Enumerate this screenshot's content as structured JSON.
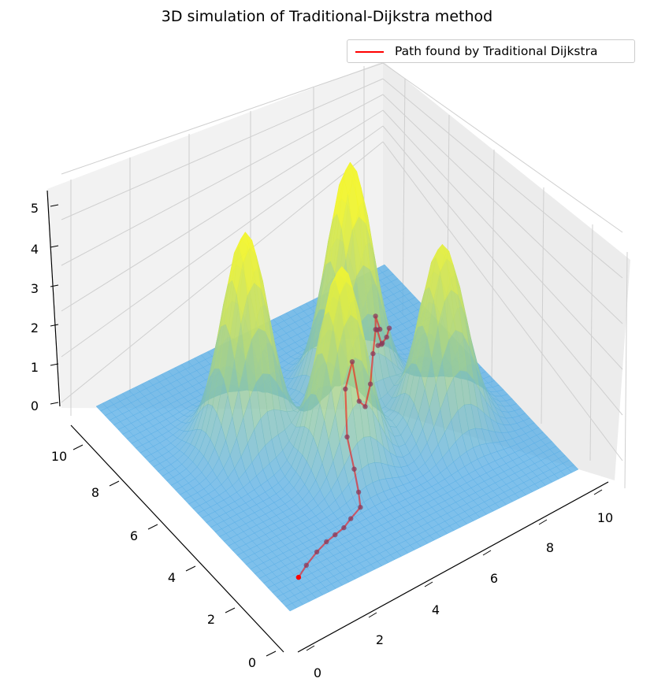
{
  "chart_data": {
    "type": "surface3d",
    "title": "3D simulation of Traditional-Dijkstra method",
    "legend": {
      "placement": "top-right",
      "entries": [
        {
          "label": "Path found by Traditional Dijkstra",
          "color": "#ff0000"
        }
      ]
    },
    "xlim": [
      0,
      11
    ],
    "ylim": [
      0,
      11
    ],
    "zlim": [
      0,
      5
    ],
    "x_ticks": [
      0,
      2,
      4,
      6,
      8,
      10
    ],
    "y_ticks": [
      0,
      2,
      4,
      6,
      8,
      10
    ],
    "z_ticks": [
      0,
      1,
      2,
      3,
      4,
      5
    ],
    "grid": true,
    "colors": {
      "low": "#5aaee6",
      "high": "#f2f530",
      "path": "#ff0000",
      "pane": "#f2f2f2",
      "grid": "#cfcfcf"
    },
    "peaks": [
      {
        "x": 3.0,
        "y": 7.0,
        "height": 4.6,
        "spread": 0.75
      },
      {
        "x": 7.0,
        "y": 7.0,
        "height": 5.0,
        "spread": 0.75
      },
      {
        "x": 5.0,
        "y": 4.5,
        "height": 4.3,
        "spread": 0.75
      },
      {
        "x": 8.5,
        "y": 4.0,
        "height": 4.0,
        "spread": 0.75
      }
    ],
    "path": {
      "name": "Path found by Traditional Dijkstra",
      "points": [
        [
          1.0,
          1.0
        ],
        [
          1.5,
          1.3
        ],
        [
          2.1,
          1.6
        ],
        [
          2.6,
          1.8
        ],
        [
          3.0,
          1.9
        ],
        [
          3.4,
          2.0
        ],
        [
          3.8,
          2.2
        ],
        [
          4.3,
          2.4
        ],
        [
          4.5,
          2.8
        ],
        [
          4.6,
          3.2
        ],
        [
          4.6,
          3.6
        ],
        [
          4.8,
          4.0
        ],
        [
          5.4,
          4.5
        ],
        [
          6.0,
          5.0
        ],
        [
          6.5,
          5.4
        ],
        [
          6.9,
          5.7
        ],
        [
          7.2,
          6.0
        ],
        [
          7.5,
          6.3
        ],
        [
          7.7,
          6.6
        ],
        [
          8.0,
          6.8
        ],
        [
          8.1,
          7.1
        ],
        [
          8.4,
          7.3
        ],
        [
          8.6,
          7.8
        ],
        [
          8.9,
          8.0
        ],
        [
          9.2,
          8.2
        ],
        [
          9.5,
          8.5
        ]
      ]
    }
  }
}
